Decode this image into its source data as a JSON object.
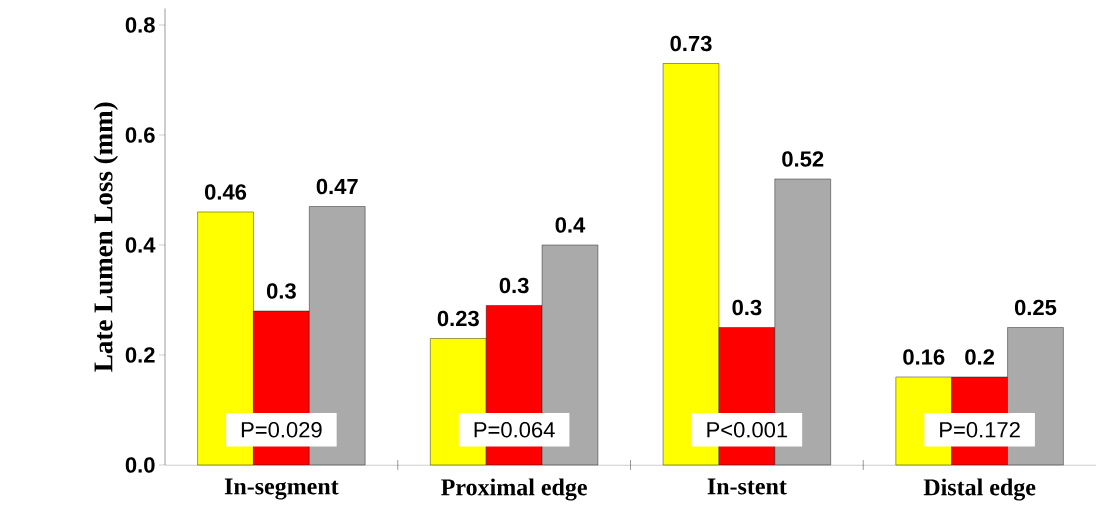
{
  "chart_data": {
    "type": "bar",
    "ylabel": "Late Lumen Loss (mm)",
    "categories": [
      "In-segment",
      "Proximal edge",
      "In-stent",
      "Distal edge"
    ],
    "series": [
      {
        "color": "#ffff00",
        "values": [
          0.46,
          0.23,
          0.73,
          0.16
        ],
        "value_labels": [
          "0.46",
          "0.23",
          "0.73",
          "0.16"
        ]
      },
      {
        "color": "#ff0000",
        "values": [
          0.28,
          0.29,
          0.25,
          0.16
        ],
        "value_labels": [
          "0.3",
          "0.3",
          "0.3",
          "0.2"
        ]
      },
      {
        "color": "#aaaaaa",
        "values": [
          0.47,
          0.4,
          0.52,
          0.25
        ],
        "value_labels": [
          "0.47",
          "0.4",
          "0.52",
          "0.25"
        ]
      }
    ],
    "ylim": [
      0,
      0.83
    ],
    "yticks": [
      {
        "value": 0,
        "label": "0.0"
      },
      0.2,
      0.4,
      0.6,
      0.8
    ],
    "annotations": [
      "P=0.029",
      "P=0.064",
      "P<0.001",
      "P=0.172"
    ],
    "grid": false
  }
}
